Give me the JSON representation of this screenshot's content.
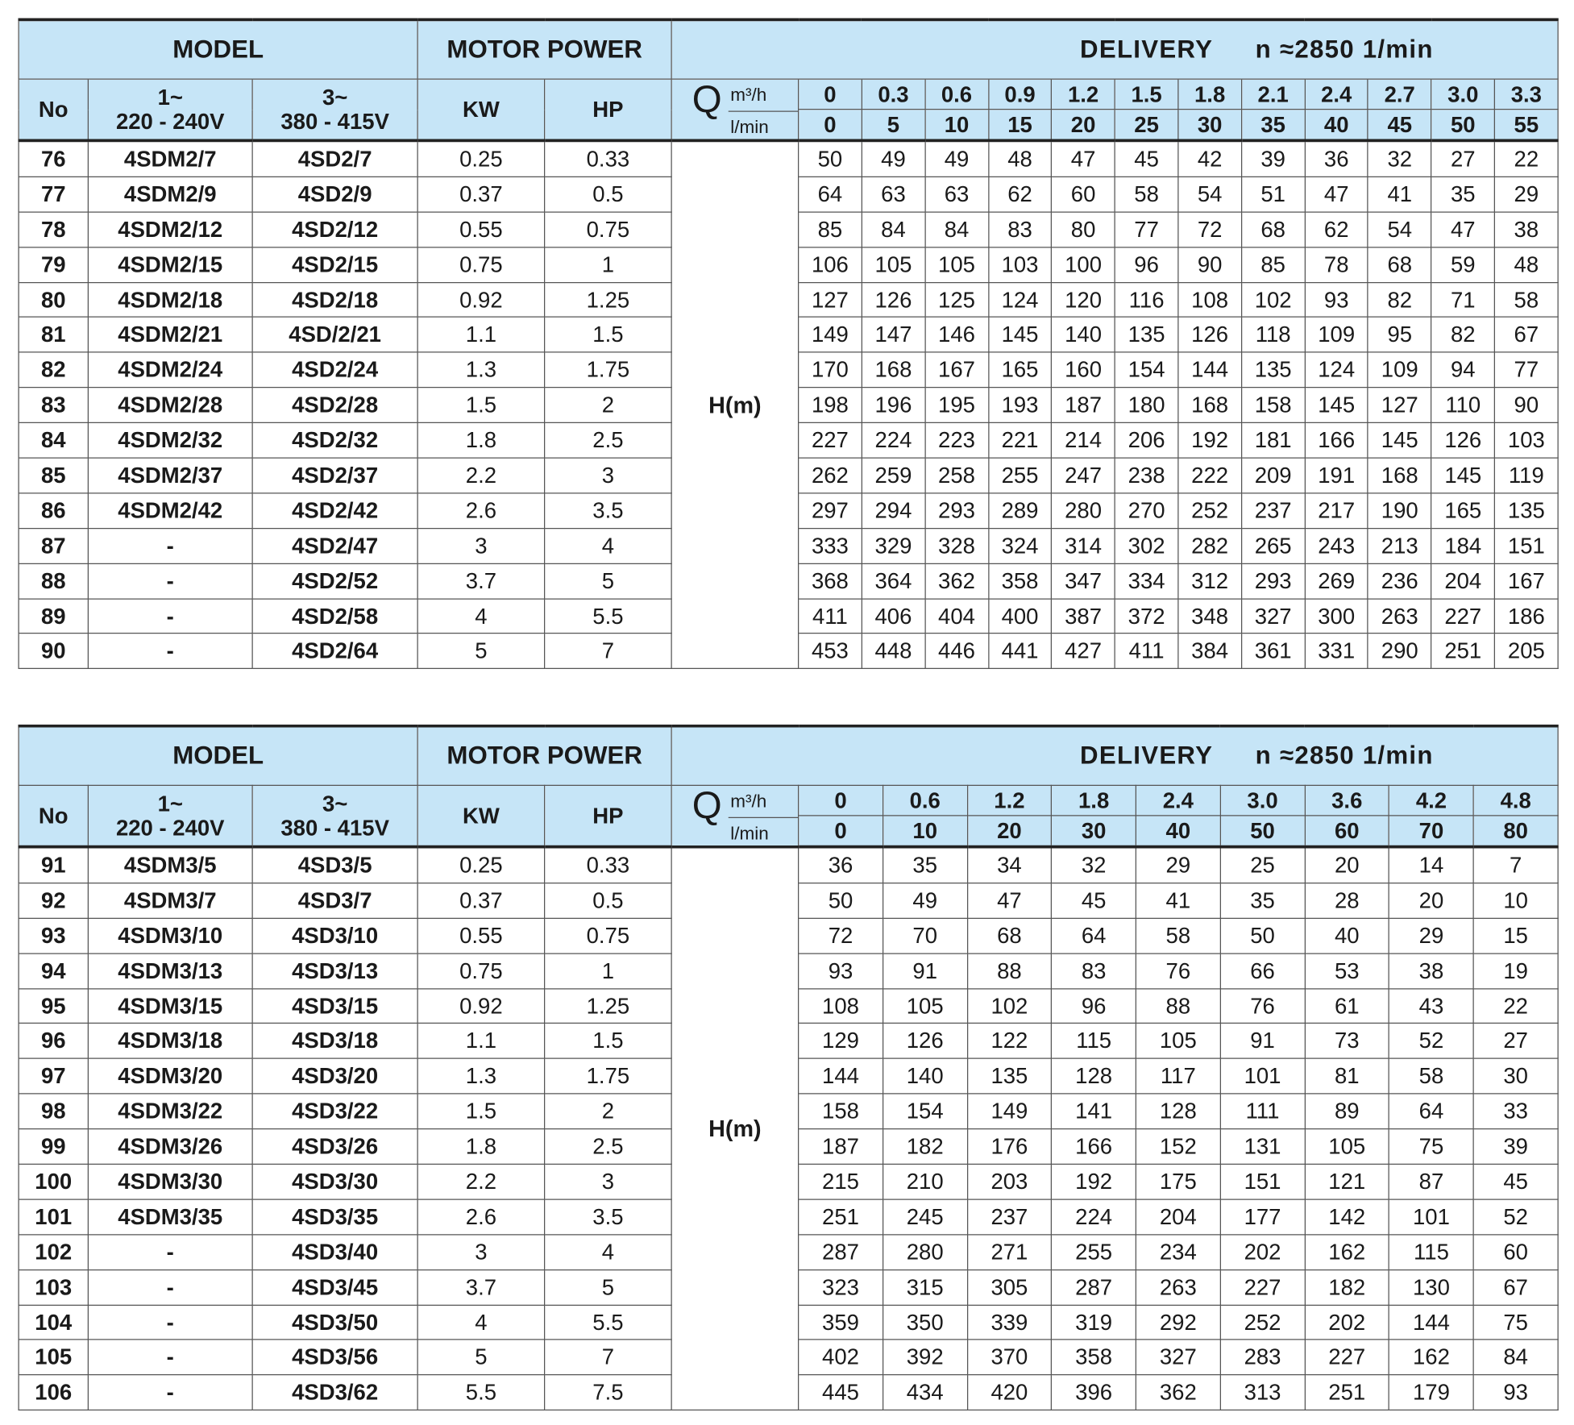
{
  "colors": {
    "header_bg": "#c6e5f7",
    "border": "#555555"
  },
  "tables": [
    {
      "headers": {
        "model": "MODEL",
        "motor_power": "MOTOR POWER",
        "delivery": "DELIVERY",
        "speed": "n ≈2850  1/min",
        "no": "No",
        "single_phase": [
          "1~",
          "220 - 240V"
        ],
        "three_phase": [
          "3~",
          "380 - 415V"
        ],
        "kw": "KW",
        "hp": "HP",
        "q": "Q",
        "q_unit1": "m³/h",
        "q_unit2": "l/min",
        "head_label": "H(m)"
      },
      "flow_m3h": [
        "0",
        "0.3",
        "0.6",
        "0.9",
        "1.2",
        "1.5",
        "1.8",
        "2.1",
        "2.4",
        "2.7",
        "3.0",
        "3.3"
      ],
      "flow_lmin": [
        "0",
        "5",
        "10",
        "15",
        "20",
        "25",
        "30",
        "35",
        "40",
        "45",
        "50",
        "55"
      ],
      "rows": [
        {
          "no": "76",
          "single": "4SDM2/7",
          "three": "4SD2/7",
          "kw": "0.25",
          "hp": "0.33",
          "head": [
            50,
            49,
            49,
            48,
            47,
            45,
            42,
            39,
            36,
            32,
            27,
            22
          ]
        },
        {
          "no": "77",
          "single": "4SDM2/9",
          "three": "4SD2/9",
          "kw": "0.37",
          "hp": "0.5",
          "head": [
            64,
            63,
            63,
            62,
            60,
            58,
            54,
            51,
            47,
            41,
            35,
            29
          ]
        },
        {
          "no": "78",
          "single": "4SDM2/12",
          "three": "4SD2/12",
          "kw": "0.55",
          "hp": "0.75",
          "head": [
            85,
            84,
            84,
            83,
            80,
            77,
            72,
            68,
            62,
            54,
            47,
            38
          ]
        },
        {
          "no": "79",
          "single": "4SDM2/15",
          "three": "4SD2/15",
          "kw": "0.75",
          "hp": "1",
          "head": [
            106,
            105,
            105,
            103,
            100,
            96,
            90,
            85,
            78,
            68,
            59,
            48
          ]
        },
        {
          "no": "80",
          "single": "4SDM2/18",
          "three": "4SD2/18",
          "kw": "0.92",
          "hp": "1.25",
          "head": [
            127,
            126,
            125,
            124,
            120,
            116,
            108,
            102,
            93,
            82,
            71,
            58
          ]
        },
        {
          "no": "81",
          "single": "4SDM2/21",
          "three": "4SD/2/21",
          "kw": "1.1",
          "hp": "1.5",
          "head": [
            149,
            147,
            146,
            145,
            140,
            135,
            126,
            118,
            109,
            95,
            82,
            67
          ]
        },
        {
          "no": "82",
          "single": "4SDM2/24",
          "three": "4SD2/24",
          "kw": "1.3",
          "hp": "1.75",
          "head": [
            170,
            168,
            167,
            165,
            160,
            154,
            144,
            135,
            124,
            109,
            94,
            77
          ]
        },
        {
          "no": "83",
          "single": "4SDM2/28",
          "three": "4SD2/28",
          "kw": "1.5",
          "hp": "2",
          "head": [
            198,
            196,
            195,
            193,
            187,
            180,
            168,
            158,
            145,
            127,
            110,
            90
          ]
        },
        {
          "no": "84",
          "single": "4SDM2/32",
          "three": "4SD2/32",
          "kw": "1.8",
          "hp": "2.5",
          "head": [
            227,
            224,
            223,
            221,
            214,
            206,
            192,
            181,
            166,
            145,
            126,
            103
          ]
        },
        {
          "no": "85",
          "single": "4SDM2/37",
          "three": "4SD2/37",
          "kw": "2.2",
          "hp": "3",
          "head": [
            262,
            259,
            258,
            255,
            247,
            238,
            222,
            209,
            191,
            168,
            145,
            119
          ]
        },
        {
          "no": "86",
          "single": "4SDM2/42",
          "three": "4SD2/42",
          "kw": "2.6",
          "hp": "3.5",
          "head": [
            297,
            294,
            293,
            289,
            280,
            270,
            252,
            237,
            217,
            190,
            165,
            135
          ]
        },
        {
          "no": "87",
          "single": "-",
          "three": "4SD2/47",
          "kw": "3",
          "hp": "4",
          "head": [
            333,
            329,
            328,
            324,
            314,
            302,
            282,
            265,
            243,
            213,
            184,
            151
          ]
        },
        {
          "no": "88",
          "single": "-",
          "three": "4SD2/52",
          "kw": "3.7",
          "hp": "5",
          "head": [
            368,
            364,
            362,
            358,
            347,
            334,
            312,
            293,
            269,
            236,
            204,
            167
          ]
        },
        {
          "no": "89",
          "single": "-",
          "three": "4SD2/58",
          "kw": "4",
          "hp": "5.5",
          "head": [
            411,
            406,
            404,
            400,
            387,
            372,
            348,
            327,
            300,
            263,
            227,
            186
          ]
        },
        {
          "no": "90",
          "single": "-",
          "three": "4SD2/64",
          "kw": "5",
          "hp": "7",
          "head": [
            453,
            448,
            446,
            441,
            427,
            411,
            384,
            361,
            331,
            290,
            251,
            205
          ]
        }
      ]
    },
    {
      "headers": {
        "model": "MODEL",
        "motor_power": "MOTOR POWER",
        "delivery": "DELIVERY",
        "speed": "n ≈2850  1/min",
        "no": "No",
        "single_phase": [
          "1~",
          "220 - 240V"
        ],
        "three_phase": [
          "3~",
          "380 - 415V"
        ],
        "kw": "KW",
        "hp": "HP",
        "q": "Q",
        "q_unit1": "m³/h",
        "q_unit2": "l/min",
        "head_label": "H(m)"
      },
      "flow_m3h": [
        "0",
        "0.6",
        "1.2",
        "1.8",
        "2.4",
        "3.0",
        "3.6",
        "4.2",
        "4.8"
      ],
      "flow_lmin": [
        "0",
        "10",
        "20",
        "30",
        "40",
        "50",
        "60",
        "70",
        "80"
      ],
      "rows": [
        {
          "no": "91",
          "single": "4SDM3/5",
          "three": "4SD3/5",
          "kw": "0.25",
          "hp": "0.33",
          "head": [
            36,
            35,
            34,
            32,
            29,
            25,
            20,
            14,
            7
          ]
        },
        {
          "no": "92",
          "single": "4SDM3/7",
          "three": "4SD3/7",
          "kw": "0.37",
          "hp": "0.5",
          "head": [
            50,
            49,
            47,
            45,
            41,
            35,
            28,
            20,
            10
          ]
        },
        {
          "no": "93",
          "single": "4SDM3/10",
          "three": "4SD3/10",
          "kw": "0.55",
          "hp": "0.75",
          "head": [
            72,
            70,
            68,
            64,
            58,
            50,
            40,
            29,
            15
          ]
        },
        {
          "no": "94",
          "single": "4SDM3/13",
          "three": "4SD3/13",
          "kw": "0.75",
          "hp": "1",
          "head": [
            93,
            91,
            88,
            83,
            76,
            66,
            53,
            38,
            19
          ]
        },
        {
          "no": "95",
          "single": "4SDM3/15",
          "three": "4SD3/15",
          "kw": "0.92",
          "hp": "1.25",
          "head": [
            108,
            105,
            102,
            96,
            88,
            76,
            61,
            43,
            22
          ]
        },
        {
          "no": "96",
          "single": "4SDM3/18",
          "three": "4SD3/18",
          "kw": "1.1",
          "hp": "1.5",
          "head": [
            129,
            126,
            122,
            115,
            105,
            91,
            73,
            52,
            27
          ]
        },
        {
          "no": "97",
          "single": "4SDM3/20",
          "three": "4SD3/20",
          "kw": "1.3",
          "hp": "1.75",
          "head": [
            144,
            140,
            135,
            128,
            117,
            101,
            81,
            58,
            30
          ]
        },
        {
          "no": "98",
          "single": "4SDM3/22",
          "three": "4SD3/22",
          "kw": "1.5",
          "hp": "2",
          "head": [
            158,
            154,
            149,
            141,
            128,
            111,
            89,
            64,
            33
          ]
        },
        {
          "no": "99",
          "single": "4SDM3/26",
          "three": "4SD3/26",
          "kw": "1.8",
          "hp": "2.5",
          "head": [
            187,
            182,
            176,
            166,
            152,
            131,
            105,
            75,
            39
          ]
        },
        {
          "no": "100",
          "single": "4SDM3/30",
          "three": "4SD3/30",
          "kw": "2.2",
          "hp": "3",
          "head": [
            215,
            210,
            203,
            192,
            175,
            151,
            121,
            87,
            45
          ]
        },
        {
          "no": "101",
          "single": "4SDM3/35",
          "three": "4SD3/35",
          "kw": "2.6",
          "hp": "3.5",
          "head": [
            251,
            245,
            237,
            224,
            204,
            177,
            142,
            101,
            52
          ]
        },
        {
          "no": "102",
          "single": "-",
          "three": "4SD3/40",
          "kw": "3",
          "hp": "4",
          "head": [
            287,
            280,
            271,
            255,
            234,
            202,
            162,
            115,
            60
          ]
        },
        {
          "no": "103",
          "single": "-",
          "three": "4SD3/45",
          "kw": "3.7",
          "hp": "5",
          "head": [
            323,
            315,
            305,
            287,
            263,
            227,
            182,
            130,
            67
          ]
        },
        {
          "no": "104",
          "single": "-",
          "three": "4SD3/50",
          "kw": "4",
          "hp": "5.5",
          "head": [
            359,
            350,
            339,
            319,
            292,
            252,
            202,
            144,
            75
          ]
        },
        {
          "no": "105",
          "single": "-",
          "three": "4SD3/56",
          "kw": "5",
          "hp": "7",
          "head": [
            402,
            392,
            370,
            358,
            327,
            283,
            227,
            162,
            84
          ]
        },
        {
          "no": "106",
          "single": "-",
          "three": "4SD3/62",
          "kw": "5.5",
          "hp": "7.5",
          "head": [
            445,
            434,
            420,
            396,
            362,
            313,
            251,
            179,
            93
          ]
        }
      ]
    }
  ]
}
